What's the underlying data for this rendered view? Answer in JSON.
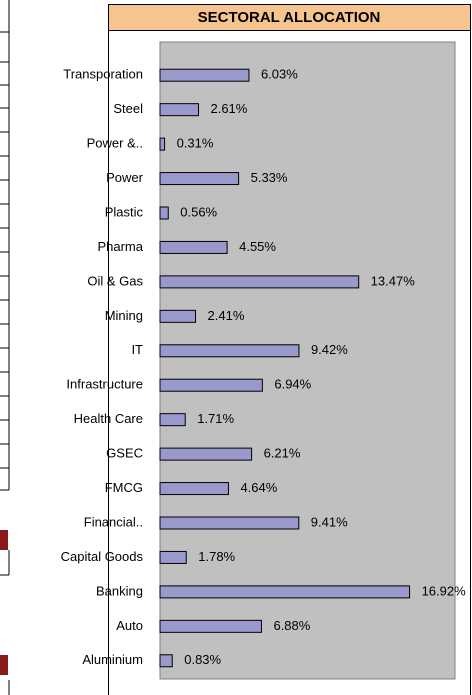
{
  "chart_data": {
    "type": "hbar",
    "title": "SECTORAL ALLOCATION",
    "categories": [
      "Transporation",
      "Steel",
      "Power &..",
      "Power",
      "Plastic",
      "Pharma",
      "Oil & Gas",
      "Mining",
      "IT",
      "Infrastructure",
      "Health Care",
      "GSEC",
      "FMCG",
      "Financial..",
      "Capital Goods",
      "Banking",
      "Auto",
      "Aluminium"
    ],
    "values": [
      6.03,
      2.61,
      0.31,
      5.33,
      0.56,
      4.55,
      13.47,
      2.41,
      9.42,
      6.94,
      1.71,
      6.21,
      4.64,
      9.41,
      1.78,
      16.92,
      6.88,
      0.83
    ],
    "value_labels": [
      "6.03%",
      "2.61%",
      "0.31%",
      "5.33%",
      "0.56%",
      "4.55%",
      "13.47%",
      "2.41%",
      "9.42%",
      "6.94%",
      "1.71%",
      "6.21%",
      "4.64%",
      "9.41%",
      "1.78%",
      "16.92%",
      "6.88%",
      "0.83%"
    ],
    "color": "#9999cc",
    "xlim": [
      0,
      20
    ]
  }
}
